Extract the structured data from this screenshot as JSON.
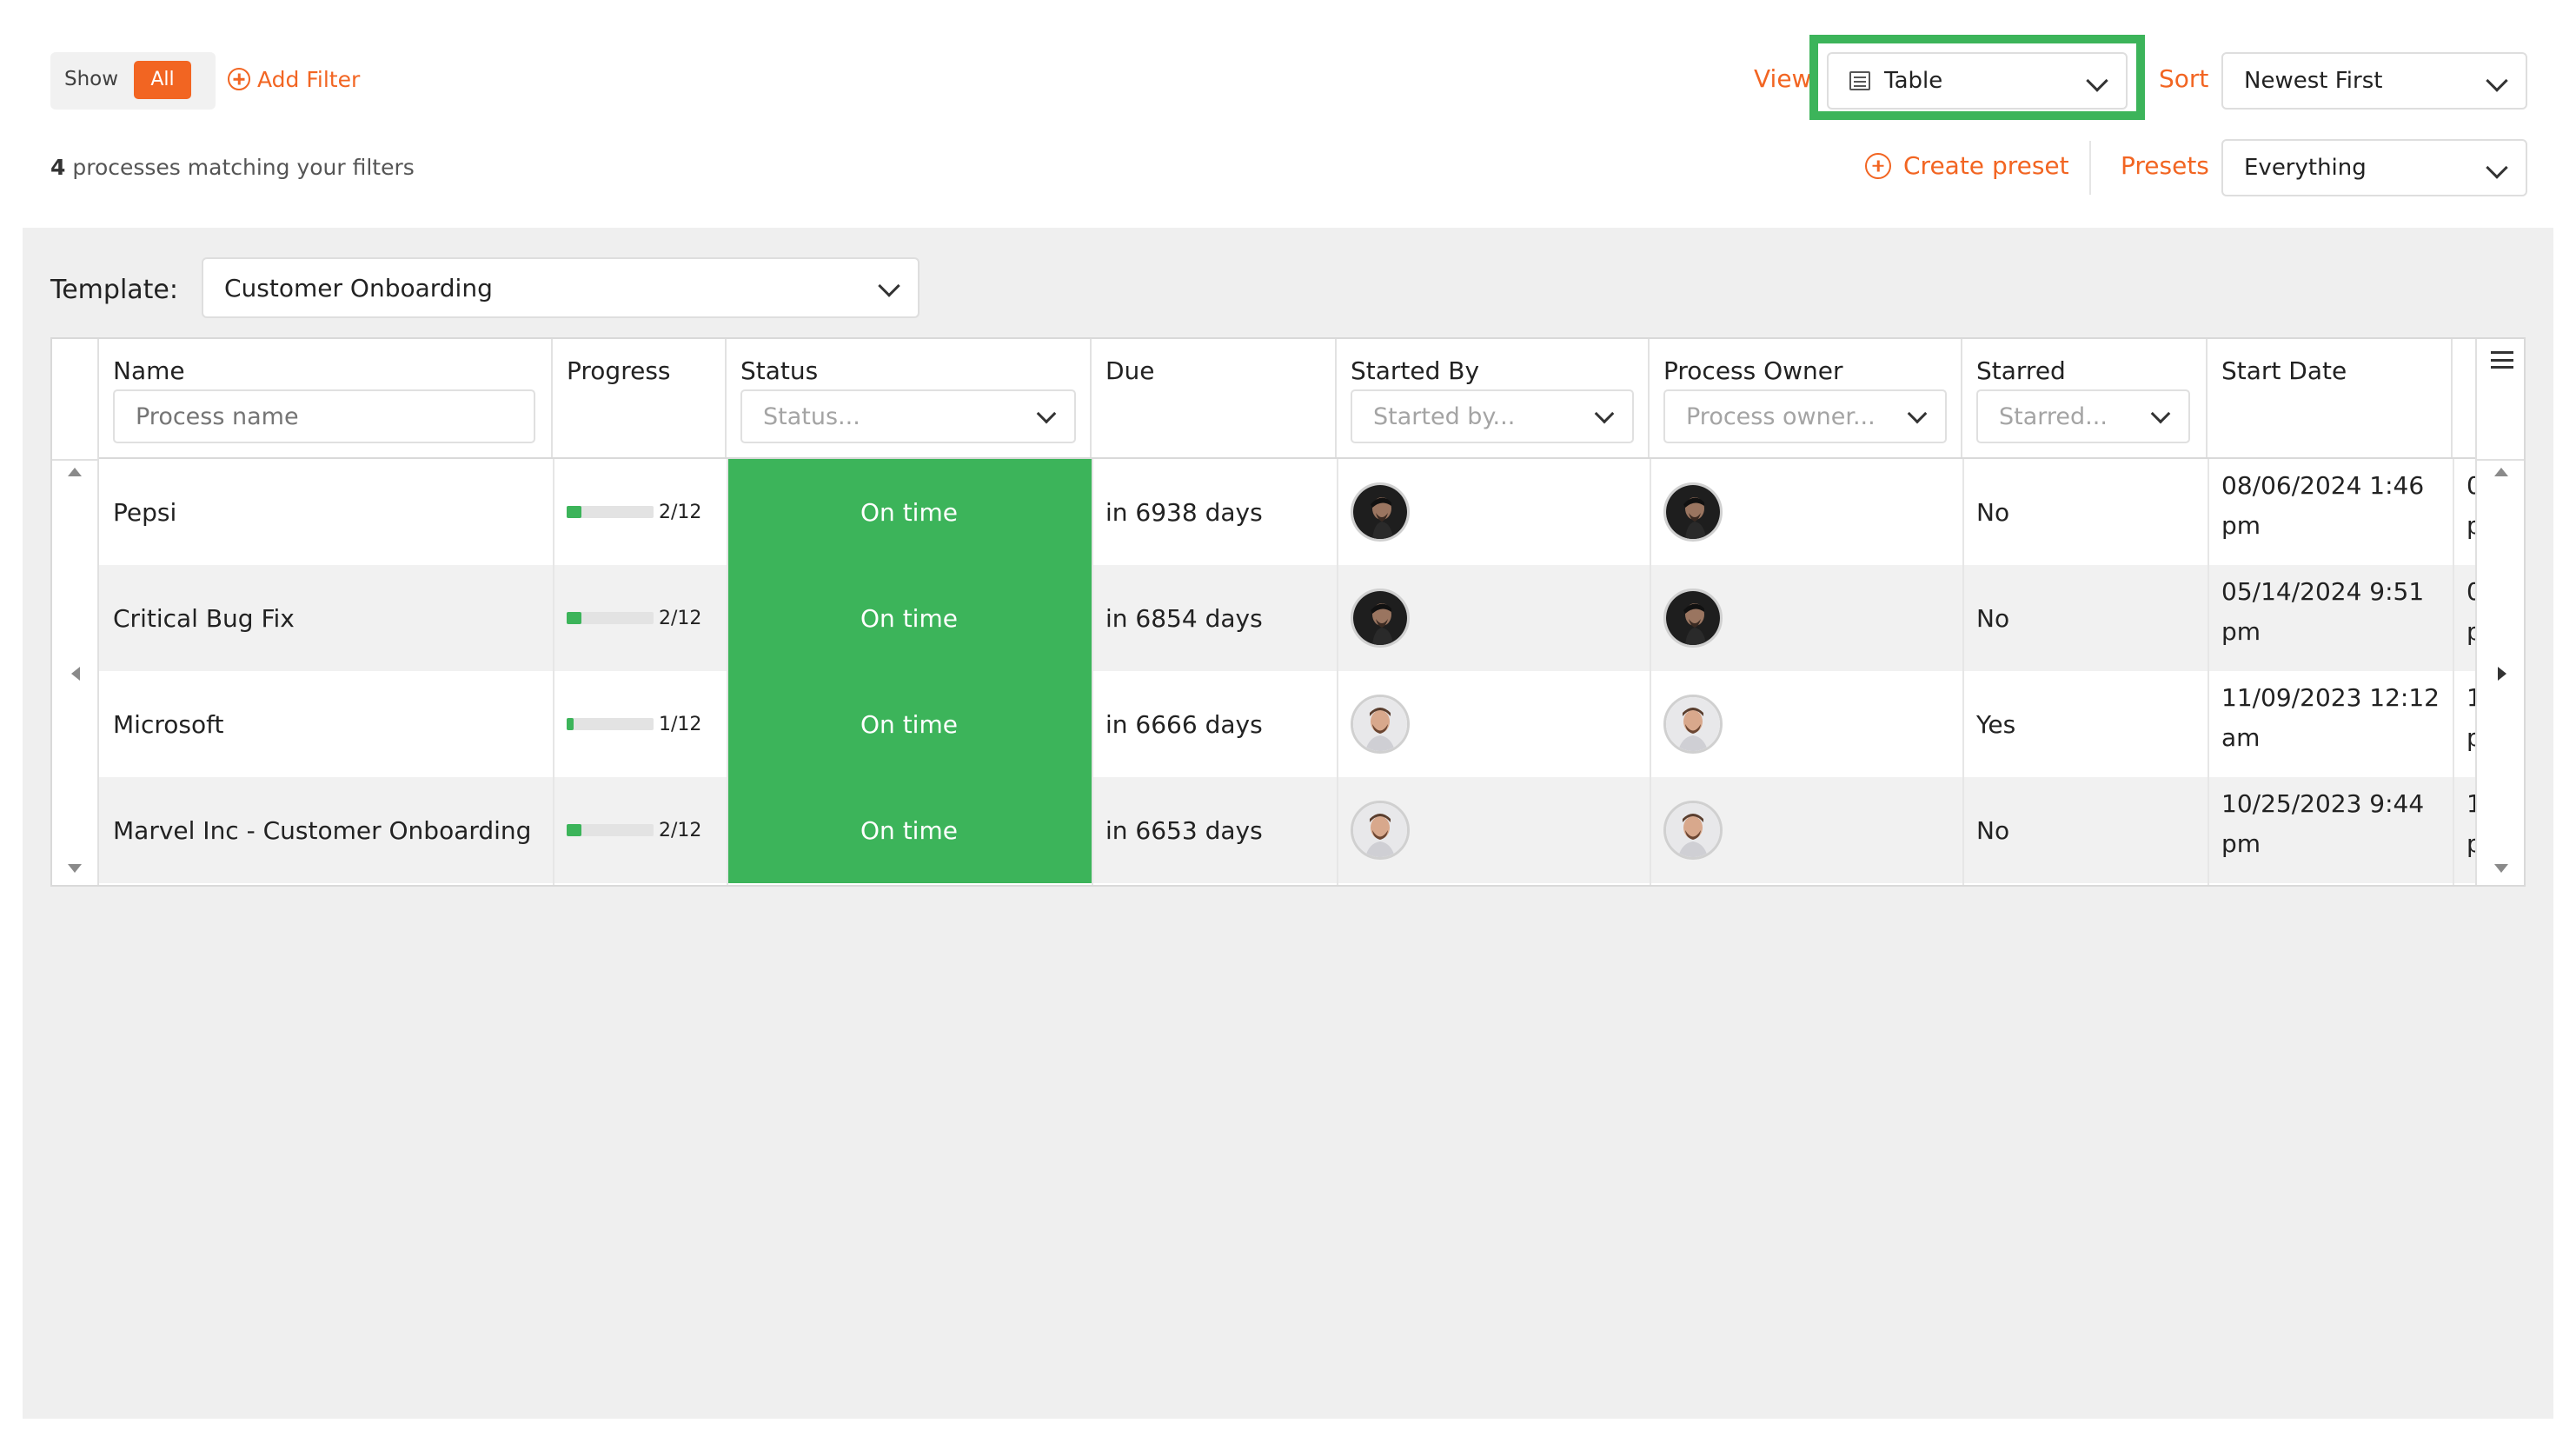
{
  "filters": {
    "show_label": "Show",
    "show_value": "All",
    "add_filter": "Add Filter",
    "count": "4",
    "count_suffix": "processes matching your filters"
  },
  "view": {
    "label": "View",
    "value": "Table"
  },
  "sort": {
    "label": "Sort",
    "value": "Newest First"
  },
  "presets": {
    "create": "Create preset",
    "label": "Presets",
    "value": "Everything"
  },
  "template": {
    "label": "Template:",
    "value": "Customer Onboarding"
  },
  "columns": {
    "name": "Name",
    "progress": "Progress",
    "status": "Status",
    "due": "Due",
    "started_by": "Started By",
    "process_owner": "Process Owner",
    "starred": "Starred",
    "start_date": "Start Date"
  },
  "placeholders": {
    "name": "Process name",
    "status": "Status...",
    "started_by": "Started by...",
    "process_owner": "Process owner...",
    "starred": "Starred..."
  },
  "rows": [
    {
      "name": "Pepsi",
      "progress_done": 2,
      "progress_total": 12,
      "progress_text": "2/12",
      "status": "On time",
      "due": "in 6938 days",
      "starter_avatar": "dark",
      "owner_avatar": "dark",
      "starred": "No",
      "start_date_1": "08/06/2024 1:46",
      "start_date_2": "pm",
      "next_1": "0",
      "next_2": "p"
    },
    {
      "name": "Critical Bug Fix",
      "progress_done": 2,
      "progress_total": 12,
      "progress_text": "2/12",
      "status": "On time",
      "due": "in 6854 days",
      "starter_avatar": "dark",
      "owner_avatar": "dark",
      "starred": "No",
      "start_date_1": "05/14/2024 9:51",
      "start_date_2": "pm",
      "next_1": "0",
      "next_2": "p"
    },
    {
      "name": "Microsoft",
      "progress_done": 1,
      "progress_total": 12,
      "progress_text": "1/12",
      "status": "On time",
      "due": "in 6666 days",
      "starter_avatar": "light",
      "owner_avatar": "light",
      "starred": "Yes",
      "start_date_1": "11/09/2023 12:12",
      "start_date_2": "am",
      "next_1": "1",
      "next_2": "p"
    },
    {
      "name": "Marvel Inc - Customer Onboarding",
      "progress_done": 2,
      "progress_total": 12,
      "progress_text": "2/12",
      "status": "On time",
      "due": "in 6653 days",
      "starter_avatar": "light",
      "owner_avatar": "light",
      "starred": "No",
      "start_date_1": "10/25/2023 9:44",
      "start_date_2": "pm",
      "next_1": "1",
      "next_2": "p"
    }
  ],
  "colors": {
    "accent": "#f26522",
    "on_time": "#3cb45a",
    "highlight": "#3cb45a"
  }
}
